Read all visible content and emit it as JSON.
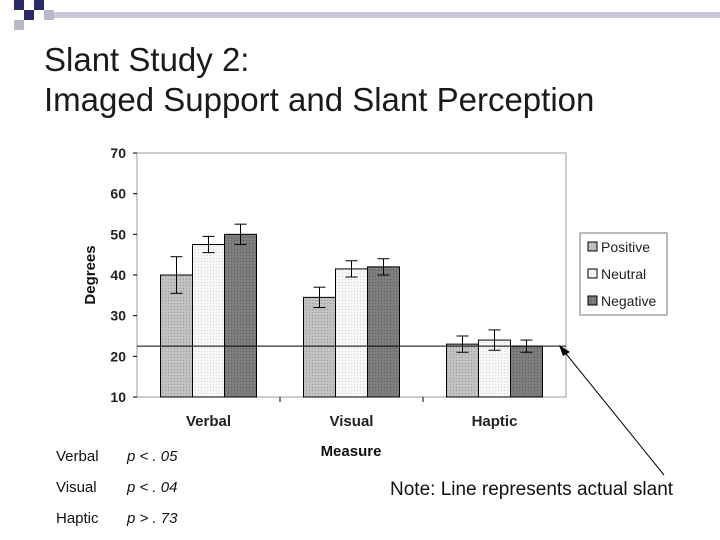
{
  "slide": {
    "title_line1": "Slant Study 2:",
    "title_line2": "Imaged Support and Slant Perception",
    "note": "Note: Line represents actual slant"
  },
  "stats": [
    {
      "label": "Verbal",
      "value": "p < . 05"
    },
    {
      "label": "Visual",
      "value": "p < . 04"
    },
    {
      "label": "Haptic",
      "value": "p > . 73"
    }
  ],
  "chart_data": {
    "type": "bar",
    "title": "",
    "xlabel": "Measure",
    "ylabel": "Degrees",
    "ylim": [
      10,
      70
    ],
    "yticks": [
      "10",
      "20",
      "30",
      "40",
      "50",
      "60",
      "70"
    ],
    "categories": [
      "Verbal",
      "Visual",
      "Haptic"
    ],
    "series": [
      {
        "name": "Positive",
        "values": [
          40,
          34.5,
          23
        ],
        "errors": [
          4.5,
          2.5,
          2
        ],
        "color": "#c0c0c0"
      },
      {
        "name": "Neutral",
        "values": [
          47.5,
          41.5,
          24
        ],
        "errors": [
          2,
          2,
          2.5
        ],
        "color": "#f4f4f4"
      },
      {
        "name": "Negative",
        "values": [
          50,
          42,
          22.5
        ],
        "errors": [
          2.5,
          2,
          1.5
        ],
        "color": "#808080"
      }
    ],
    "reference_line": 22.5,
    "grid": false,
    "legend": "right"
  }
}
